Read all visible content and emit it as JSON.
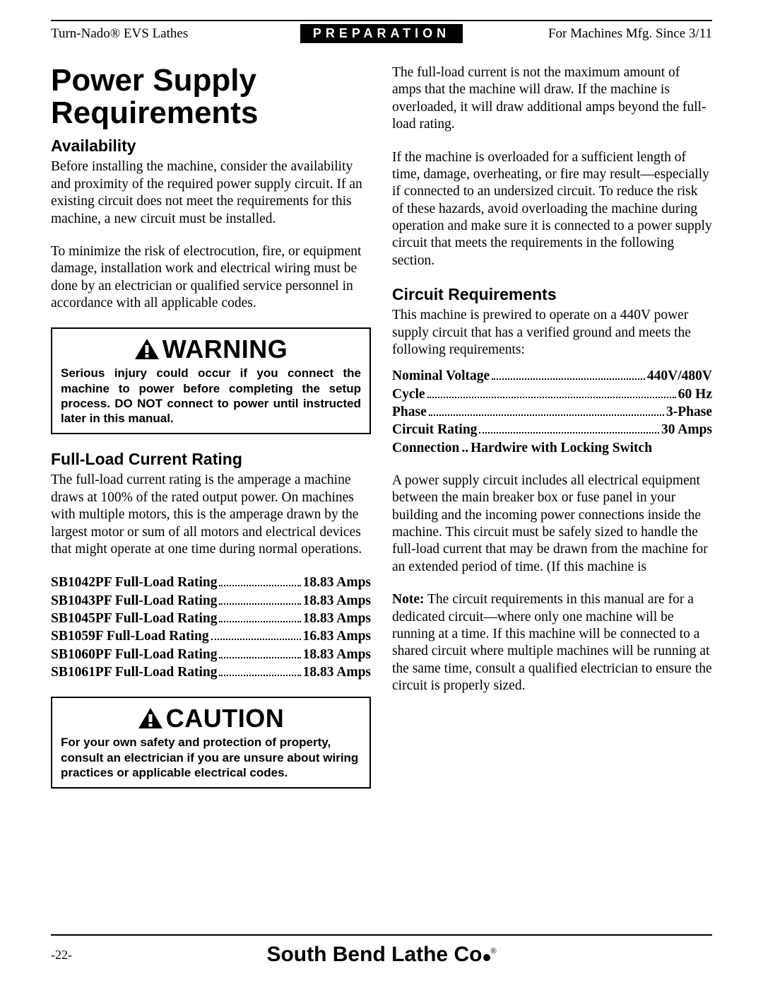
{
  "header": {
    "left": "Turn-Nado® EVS Lathes",
    "center": "PREPARATION",
    "right": "For Machines Mfg. Since 3/11"
  },
  "left_col": {
    "title": "Power Supply Requirements",
    "sec1_head": "Availability",
    "sec1_p1": "Before installing the machine, consider the availability and proximity of the required power supply circuit. If an existing circuit does not meet the requirements for this machine, a new circuit must be installed.",
    "sec1_p2": "To minimize the risk of electrocution, fire, or equipment damage, installation work and electrical wiring must be done by an electrician or qualified service personnel in accordance with all applicable codes.",
    "warn_title": "WARNING",
    "warn_body": "Serious injury could occur if you connect the machine to power before completing the setup process. DO NOT connect to power until instructed later in this manual.",
    "sec2_head": "Full-Load Current Rating",
    "sec2_p1": "The full-load current rating is the amperage a machine draws at 100% of the rated output power. On machines with multiple motors, this is the amperage drawn by the largest motor or sum of all motors and electrical devices that might operate at one time during normal operations.",
    "ratings": [
      {
        "label": "SB1042PF Full-Load Rating",
        "value": "18.83 Amps"
      },
      {
        "label": "SB1043PF Full-Load Rating",
        "value": "18.83 Amps"
      },
      {
        "label": "SB1045PF Full-Load Rating",
        "value": "18.83 Amps"
      },
      {
        "label": "SB1059F Full-Load Rating",
        "value": "16.83 Amps"
      },
      {
        "label": "SB1060PF Full-Load Rating",
        "value": "18.83 Amps"
      },
      {
        "label": "SB1061PF Full-Load Rating",
        "value": "18.83 Amps"
      }
    ],
    "caution_title": "CAUTION",
    "caution_body": "For your own safety and protection of property, consult an electrician if you are unsure about wiring practices or applicable electrical codes."
  },
  "right_col": {
    "p1": "The full-load current is not the maximum amount of amps that the machine will draw. If the machine is overloaded, it will draw additional amps beyond the full-load rating.",
    "p2": "If the machine is overloaded for a sufficient length of time, damage, overheating, or fire may result—especially if connected to an undersized circuit. To reduce the risk of these hazards, avoid overloading the machine during operation and make sure it is connected to a power supply circuit that meets the requirements in the following section.",
    "sec_head": "Circuit Requirements",
    "sec_p1": "This machine is prewired to operate on a 440V power supply circuit that has a verified ground and meets the following requirements:",
    "specs": [
      {
        "label": "Nominal Voltage",
        "value": "440V/480V"
      },
      {
        "label": "Cycle",
        "value": "60 Hz"
      },
      {
        "label": "Phase",
        "value": "3-Phase"
      },
      {
        "label": "Circuit Rating",
        "value": "30 Amps"
      },
      {
        "label": "Connection",
        "value": "Hardwire with Locking Switch",
        "nodots": true
      }
    ],
    "sec_p2": "A power supply circuit includes all electrical equipment between the main breaker box or fuse panel in your building and the incoming power connections inside the machine. This circuit must be safely sized to handle the full-load current that may be drawn from the machine for an extended period of time. (If this machine is",
    "note_label": "Note:",
    "note_body": " The circuit requirements in this manual are for a dedicated circuit—where only one machine will be running at a time. If this machine will be connected to a shared circuit where multiple machines will be running at the same time, consult a qualified electrician to ensure the circuit is properly sized."
  },
  "footer": {
    "page": "-22-",
    "brand": "South Bend Lathe Co",
    "reg": "®"
  }
}
